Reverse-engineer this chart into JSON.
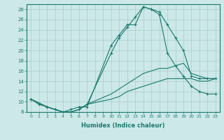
{
  "xlabel": "Humidex (Indice chaleur)",
  "bg_color": "#cce8e8",
  "grid_color": "#aacccc",
  "line_color": "#1a7a6e",
  "xlim": [
    -0.5,
    23.5
  ],
  "ylim": [
    8,
    29
  ],
  "yticks": [
    8,
    10,
    12,
    14,
    16,
    18,
    20,
    22,
    24,
    26,
    28
  ],
  "xticks": [
    0,
    1,
    2,
    3,
    4,
    5,
    6,
    7,
    8,
    9,
    10,
    11,
    12,
    13,
    14,
    15,
    16,
    17,
    18,
    19,
    20,
    21,
    22,
    23
  ],
  "line1_x": [
    0,
    1,
    2,
    3,
    4,
    5,
    6,
    7,
    10,
    11,
    12,
    13,
    14,
    15,
    16,
    17,
    18,
    19,
    20,
    21,
    22,
    23
  ],
  "line1_y": [
    10.5,
    9.5,
    9.0,
    8.5,
    8.0,
    8.5,
    9.0,
    9.0,
    21.0,
    23.0,
    25.0,
    25.0,
    28.5,
    28.0,
    27.5,
    25.0,
    22.5,
    20.0,
    15.0,
    14.5,
    14.5,
    14.5
  ],
  "line2_x": [
    0,
    2,
    3,
    4,
    5,
    6,
    7,
    10,
    11,
    12,
    13,
    14,
    15,
    16,
    17,
    18,
    19,
    20,
    21,
    22,
    23
  ],
  "line2_y": [
    10.5,
    9.0,
    8.5,
    8.0,
    8.0,
    8.5,
    9.5,
    19.5,
    22.5,
    24.5,
    26.5,
    28.5,
    28.0,
    27.0,
    19.5,
    17.0,
    15.0,
    13.0,
    12.0,
    11.5,
    11.5
  ],
  "line3_x": [
    0,
    2,
    3,
    4,
    5,
    6,
    7,
    10,
    11,
    12,
    13,
    14,
    15,
    16,
    17,
    18,
    19,
    20,
    21,
    22,
    23
  ],
  "line3_y": [
    10.5,
    9.0,
    8.5,
    8.0,
    8.0,
    8.5,
    9.5,
    11.5,
    12.5,
    13.5,
    14.5,
    15.5,
    16.0,
    16.5,
    16.5,
    17.0,
    17.5,
    15.5,
    15.0,
    14.5,
    14.5
  ],
  "line4_x": [
    0,
    2,
    3,
    4,
    5,
    6,
    7,
    10,
    11,
    12,
    13,
    14,
    15,
    16,
    17,
    18,
    19,
    20,
    21,
    22,
    23
  ],
  "line4_y": [
    10.5,
    9.0,
    8.5,
    8.0,
    8.0,
    8.5,
    9.5,
    10.5,
    11.0,
    12.0,
    12.5,
    13.0,
    13.5,
    14.0,
    14.5,
    14.5,
    14.5,
    14.5,
    14.0,
    14.0,
    14.5
  ]
}
